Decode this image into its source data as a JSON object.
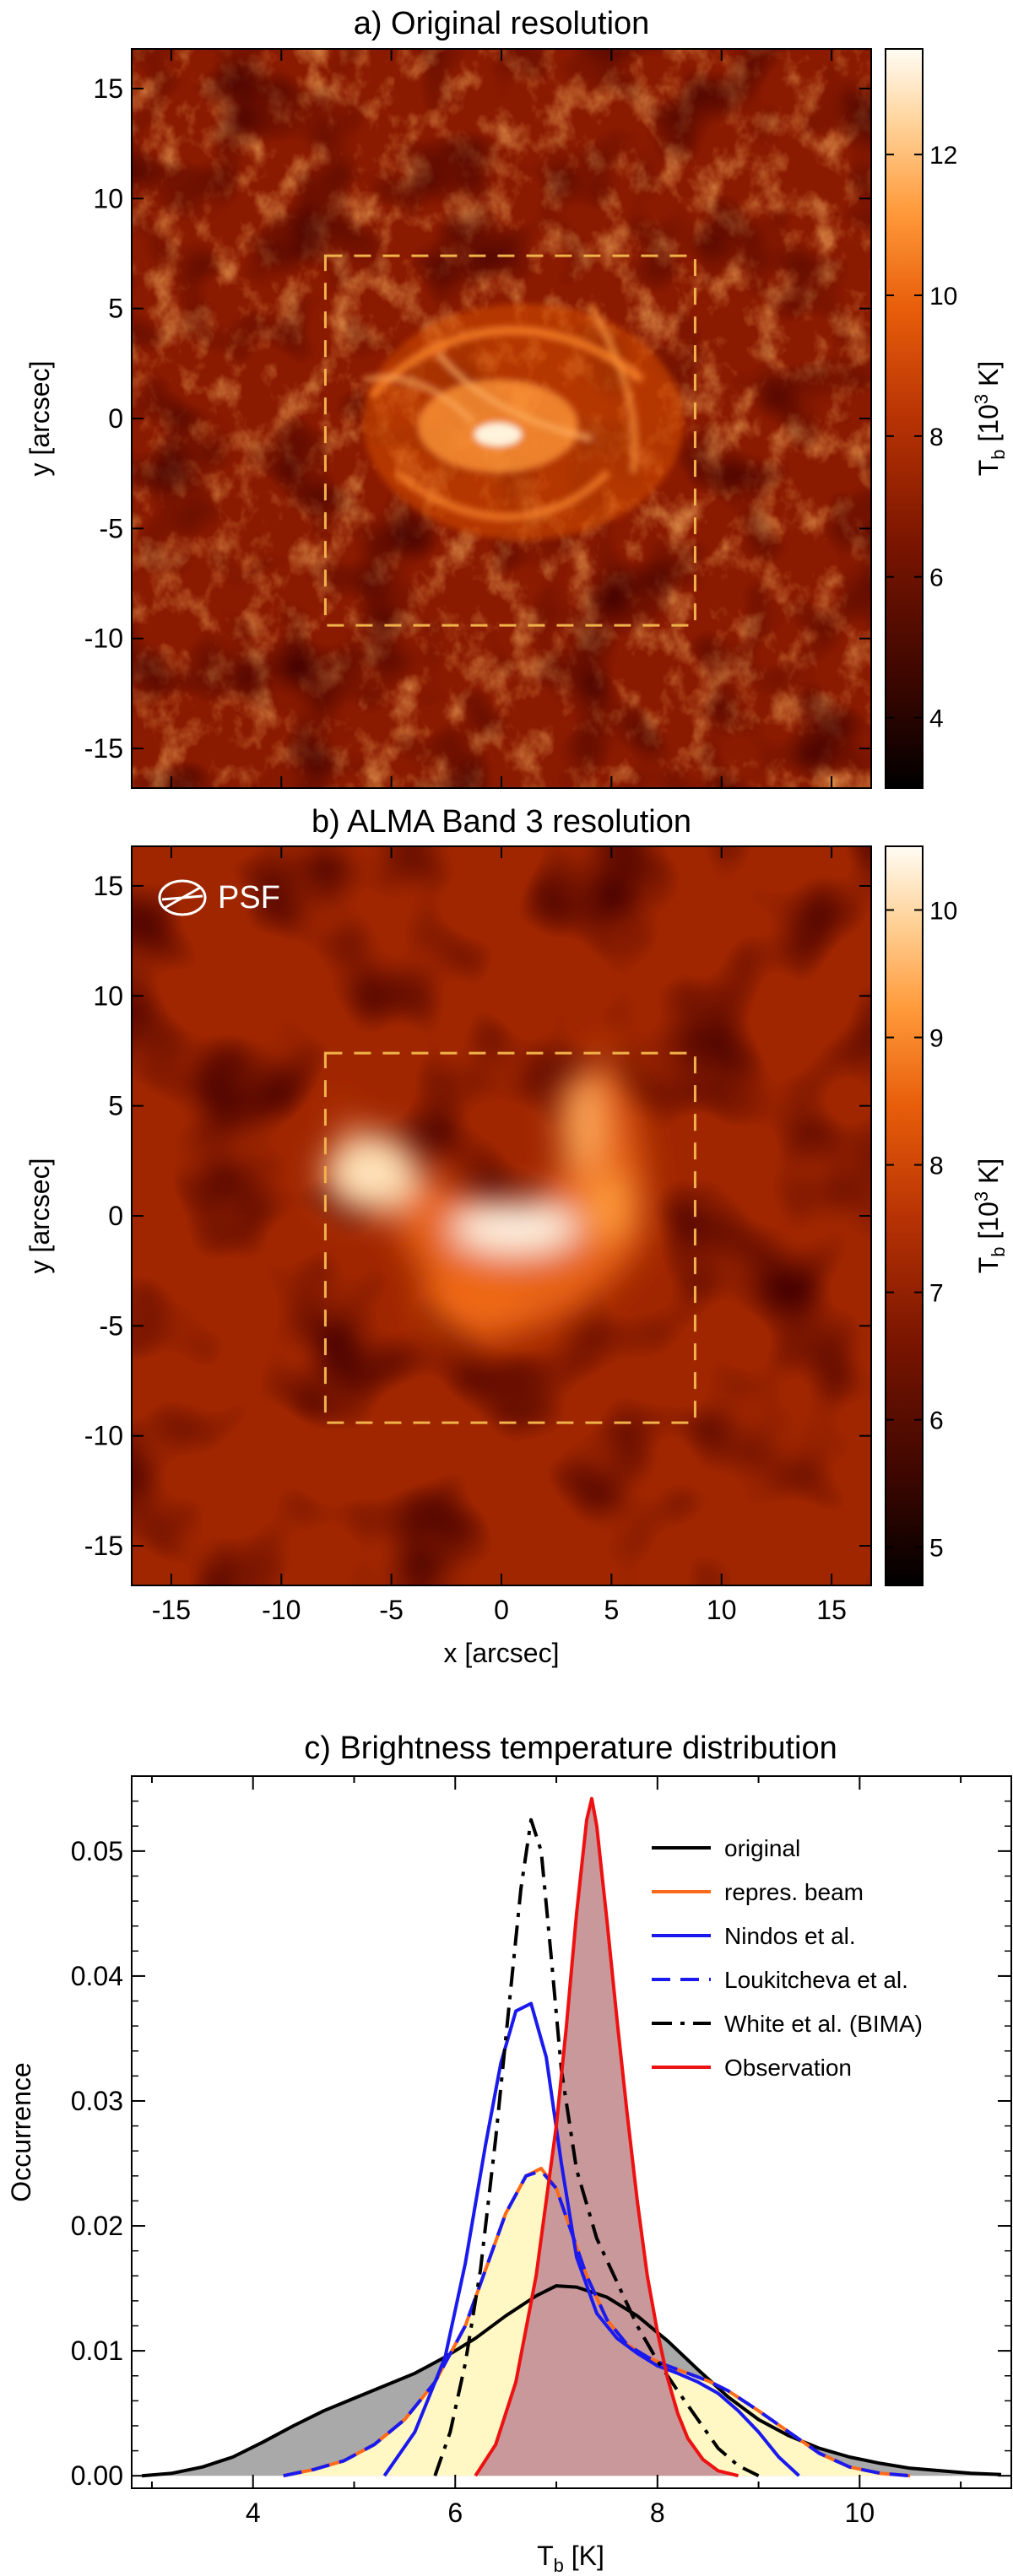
{
  "panels": [
    {
      "id": "a",
      "title": "a) Original resolution",
      "ylabel": "y [arcsec]",
      "yticks": [
        15,
        10,
        5,
        0,
        -5,
        -10,
        -15
      ],
      "extent": [
        -16.8,
        16.8
      ],
      "colorbar": {
        "label_main": "T",
        "label_sub": "b",
        "label_unit": " [10",
        "label_exp": "3",
        "label_end": " K]",
        "ticks": [
          12,
          10,
          8,
          6,
          4
        ],
        "range": [
          3.0,
          13.5
        ]
      },
      "box": {
        "x0": -8.0,
        "x1": 8.8,
        "y0": -9.4,
        "y1": 7.4
      }
    },
    {
      "id": "b",
      "title": "b) ALMA Band 3 resolution",
      "ylabel": "y [arcsec]",
      "xlabel": "x [arcsec]",
      "xticks": [
        -15,
        -10,
        -5,
        0,
        5,
        10,
        15
      ],
      "yticks": [
        15,
        10,
        5,
        0,
        -5,
        -10,
        -15
      ],
      "extent": [
        -16.8,
        16.8
      ],
      "psf_label": "PSF",
      "colorbar": {
        "label_main": "T",
        "label_sub": "b",
        "label_unit": " [10",
        "label_exp": "3",
        "label_end": " K]",
        "ticks": [
          10,
          9,
          8,
          7,
          6,
          5
        ],
        "range": [
          4.7,
          10.5
        ]
      },
      "box": {
        "x0": -8.0,
        "x1": 8.8,
        "y0": -9.4,
        "y1": 7.4
      }
    }
  ],
  "chart_data": {
    "type": "line",
    "title": "c) Brightness temperature distribution",
    "xlabel_main": "T",
    "xlabel_sub": "b",
    "xlabel_unit": " [K]",
    "ylabel": "Occurrence",
    "xlim": [
      2.8,
      11.5
    ],
    "ylim": [
      -0.001,
      0.056
    ],
    "xticks": [
      4,
      6,
      8,
      10
    ],
    "yticks": [
      0.0,
      0.01,
      0.02,
      0.03,
      0.04,
      0.05
    ],
    "ytick_labels": [
      "0.00",
      "0.01",
      "0.02",
      "0.03",
      "0.04",
      "0.05"
    ],
    "legend_position": "top-right",
    "series": [
      {
        "name": "original",
        "color": "#000000",
        "dash": "solid",
        "fill": "#a9a9a9",
        "x": [
          2.9,
          3.2,
          3.5,
          3.8,
          4.1,
          4.4,
          4.7,
          5.0,
          5.3,
          5.6,
          5.9,
          6.2,
          6.5,
          6.8,
          7.0,
          7.2,
          7.5,
          7.8,
          8.1,
          8.4,
          8.7,
          9.0,
          9.3,
          9.6,
          9.9,
          10.2,
          10.5,
          10.8,
          11.1,
          11.4
        ],
        "y": [
          0.0,
          0.0002,
          0.0007,
          0.0015,
          0.0027,
          0.004,
          0.0052,
          0.0062,
          0.0072,
          0.0082,
          0.0095,
          0.011,
          0.0128,
          0.0144,
          0.0152,
          0.0151,
          0.0143,
          0.0128,
          0.0108,
          0.0085,
          0.0063,
          0.0045,
          0.0032,
          0.0022,
          0.0015,
          0.001,
          0.0006,
          0.0004,
          0.0002,
          0.0001
        ]
      },
      {
        "name": "repres. beam",
        "color": "#ff6a1a",
        "dash": "solid",
        "fill": "#fff8c4",
        "x": [
          4.3,
          4.6,
          4.9,
          5.2,
          5.5,
          5.8,
          6.1,
          6.3,
          6.5,
          6.7,
          6.85,
          7.0,
          7.15,
          7.3,
          7.5,
          7.7,
          7.9,
          8.1,
          8.3,
          8.5,
          8.7,
          9.0,
          9.3,
          9.6,
          9.9,
          10.2,
          10.5
        ],
        "y": [
          0.0,
          0.0005,
          0.0012,
          0.0025,
          0.0045,
          0.0075,
          0.012,
          0.0165,
          0.021,
          0.024,
          0.0246,
          0.023,
          0.0195,
          0.016,
          0.0125,
          0.0105,
          0.0095,
          0.0088,
          0.0082,
          0.0076,
          0.0068,
          0.0052,
          0.0035,
          0.0018,
          0.0007,
          0.0002,
          0.0
        ]
      },
      {
        "name": "Nindos et al.",
        "color": "#1a1aee",
        "dash": "solid",
        "fill": null,
        "x": [
          5.3,
          5.6,
          5.9,
          6.1,
          6.3,
          6.45,
          6.6,
          6.75,
          6.9,
          7.05,
          7.2,
          7.4,
          7.6,
          7.8,
          8.0,
          8.2,
          8.4,
          8.6,
          8.8,
          9.0,
          9.2,
          9.4
        ],
        "y": [
          0.0,
          0.0035,
          0.0095,
          0.017,
          0.0265,
          0.033,
          0.0372,
          0.0378,
          0.0335,
          0.025,
          0.0175,
          0.013,
          0.011,
          0.0098,
          0.0088,
          0.0082,
          0.0075,
          0.0066,
          0.0052,
          0.0035,
          0.0015,
          0.0
        ]
      },
      {
        "name": "Loukitcheva et al.",
        "color": "#1a1aee",
        "dash": "long",
        "fill": null,
        "x": [
          4.3,
          4.6,
          4.9,
          5.2,
          5.5,
          5.8,
          6.1,
          6.3,
          6.5,
          6.7,
          6.85,
          7.0,
          7.15,
          7.3,
          7.5,
          7.7,
          7.9,
          8.1,
          8.3,
          8.5,
          8.7,
          9.0,
          9.3,
          9.6,
          9.9,
          10.2,
          10.5
        ],
        "y": [
          0.0,
          0.0005,
          0.0012,
          0.0025,
          0.0045,
          0.0075,
          0.012,
          0.0165,
          0.021,
          0.024,
          0.0244,
          0.023,
          0.0195,
          0.016,
          0.0125,
          0.0105,
          0.0095,
          0.0088,
          0.0082,
          0.0076,
          0.0068,
          0.0052,
          0.0035,
          0.0018,
          0.0007,
          0.0002,
          0.0
        ]
      },
      {
        "name": "White et al. (BIMA)",
        "color": "#000000",
        "dash": "dashdot",
        "fill": null,
        "x": [
          5.8,
          5.95,
          6.1,
          6.25,
          6.4,
          6.55,
          6.65,
          6.75,
          6.85,
          6.95,
          7.05,
          7.2,
          7.4,
          7.6,
          7.8,
          8.0,
          8.2,
          8.4,
          8.6,
          8.8,
          9.0
        ],
        "y": [
          0.0,
          0.0035,
          0.009,
          0.0165,
          0.027,
          0.039,
          0.047,
          0.0525,
          0.05,
          0.0415,
          0.0325,
          0.0245,
          0.019,
          0.0155,
          0.012,
          0.0092,
          0.0068,
          0.0045,
          0.0022,
          0.0008,
          0.0
        ]
      },
      {
        "name": "Observation",
        "color": "#ee1111",
        "dash": "solid",
        "fill": "#c9989b",
        "x": [
          6.2,
          6.4,
          6.6,
          6.8,
          7.0,
          7.1,
          7.2,
          7.3,
          7.35,
          7.4,
          7.5,
          7.6,
          7.7,
          7.8,
          7.9,
          8.0,
          8.1,
          8.2,
          8.3,
          8.45,
          8.6,
          8.8
        ],
        "y": [
          0.0,
          0.0025,
          0.0075,
          0.016,
          0.028,
          0.036,
          0.045,
          0.0525,
          0.0542,
          0.052,
          0.0445,
          0.0365,
          0.029,
          0.022,
          0.016,
          0.0115,
          0.0078,
          0.005,
          0.003,
          0.0013,
          0.0004,
          0.0
        ]
      }
    ]
  }
}
